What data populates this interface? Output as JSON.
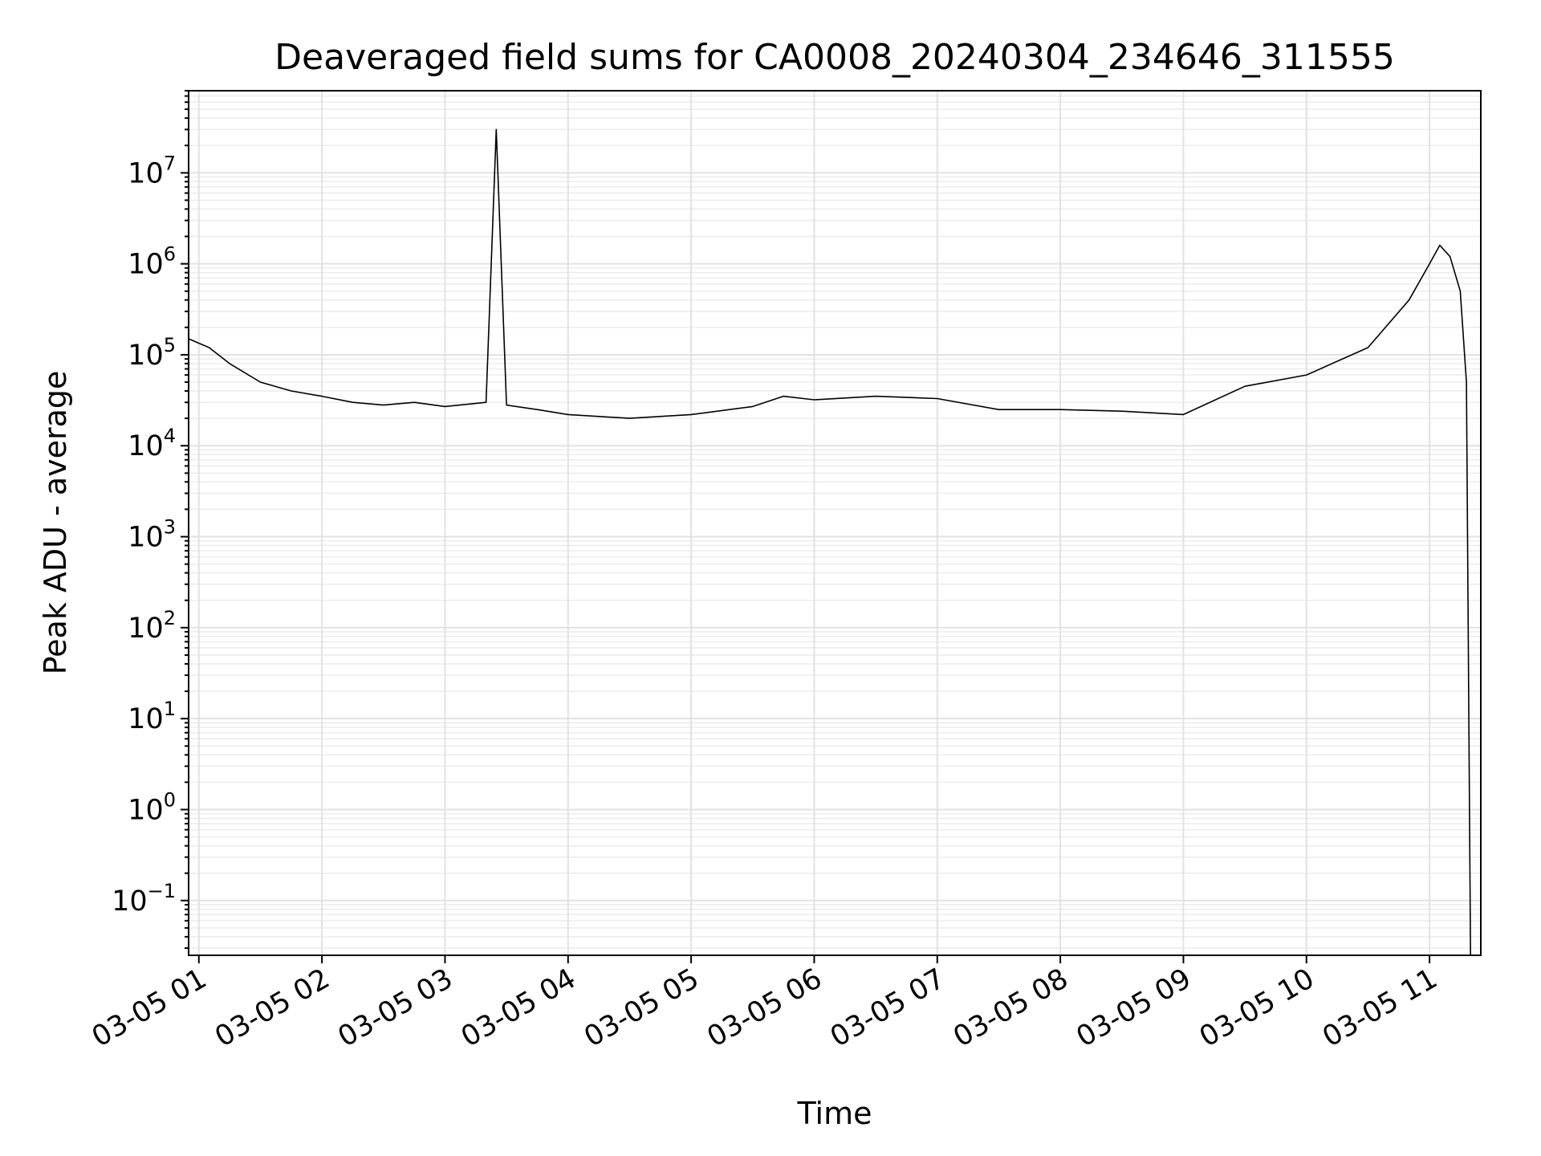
{
  "chart_data": {
    "type": "line",
    "title": "Deaveraged field sums for CA0008_20240304_234646_311555",
    "xlabel": "Time",
    "ylabel": "Peak ADU - average",
    "yscale": "log",
    "grid": true,
    "ylim": [
      0.025,
      80000000
    ],
    "xlim": [
      "2024-03-05 00:55",
      "2024-03-05 11:25"
    ],
    "x_ticks": [
      {
        "value": "2024-03-05 01:00",
        "label": "03-05 01"
      },
      {
        "value": "2024-03-05 02:00",
        "label": "03-05 02"
      },
      {
        "value": "2024-03-05 03:00",
        "label": "03-05 03"
      },
      {
        "value": "2024-03-05 04:00",
        "label": "03-05 04"
      },
      {
        "value": "2024-03-05 05:00",
        "label": "03-05 05"
      },
      {
        "value": "2024-03-05 06:00",
        "label": "03-05 06"
      },
      {
        "value": "2024-03-05 07:00",
        "label": "03-05 07"
      },
      {
        "value": "2024-03-05 08:00",
        "label": "03-05 08"
      },
      {
        "value": "2024-03-05 09:00",
        "label": "03-05 09"
      },
      {
        "value": "2024-03-05 10:00",
        "label": "03-05 10"
      },
      {
        "value": "2024-03-05 11:00",
        "label": "03-05 11"
      }
    ],
    "y_ticks": [
      {
        "value": 0.1,
        "base": "10",
        "exp": "−1"
      },
      {
        "value": 1,
        "base": "10",
        "exp": "0"
      },
      {
        "value": 10,
        "base": "10",
        "exp": "1"
      },
      {
        "value": 100,
        "base": "10",
        "exp": "2"
      },
      {
        "value": 1000,
        "base": "10",
        "exp": "3"
      },
      {
        "value": 10000,
        "base": "10",
        "exp": "4"
      },
      {
        "value": 100000,
        "base": "10",
        "exp": "5"
      },
      {
        "value": 1000000,
        "base": "10",
        "exp": "6"
      },
      {
        "value": 10000000,
        "base": "10",
        "exp": "7"
      }
    ],
    "series": [
      {
        "color": "#000000",
        "x": [
          "2024-03-05 00:55",
          "2024-03-05 01:05",
          "2024-03-05 01:15",
          "2024-03-05 01:30",
          "2024-03-05 01:45",
          "2024-03-05 02:00",
          "2024-03-05 02:15",
          "2024-03-05 02:30",
          "2024-03-05 02:45",
          "2024-03-05 03:00",
          "2024-03-05 03:20",
          "2024-03-05 03:25",
          "2024-03-05 03:30",
          "2024-03-05 03:45",
          "2024-03-05 04:00",
          "2024-03-05 04:30",
          "2024-03-05 05:00",
          "2024-03-05 05:30",
          "2024-03-05 05:45",
          "2024-03-05 06:00",
          "2024-03-05 06:30",
          "2024-03-05 07:00",
          "2024-03-05 07:30",
          "2024-03-05 08:00",
          "2024-03-05 08:30",
          "2024-03-05 09:00",
          "2024-03-05 09:30",
          "2024-03-05 10:00",
          "2024-03-05 10:30",
          "2024-03-05 10:50",
          "2024-03-05 11:00",
          "2024-03-05 11:05",
          "2024-03-05 11:10",
          "2024-03-05 11:15",
          "2024-03-05 11:18",
          "2024-03-05 11:20"
        ],
        "y": [
          150000,
          120000,
          80000,
          50000,
          40000,
          35000,
          30000,
          28000,
          30000,
          27000,
          30000,
          30000000,
          28000,
          25000,
          22000,
          20000,
          22000,
          27000,
          35000,
          32000,
          35000,
          33000,
          25000,
          25000,
          24000,
          22000,
          45000,
          60000,
          120000,
          400000,
          1000000,
          1600000,
          1200000,
          500000,
          50000,
          0.025
        ]
      }
    ]
  }
}
